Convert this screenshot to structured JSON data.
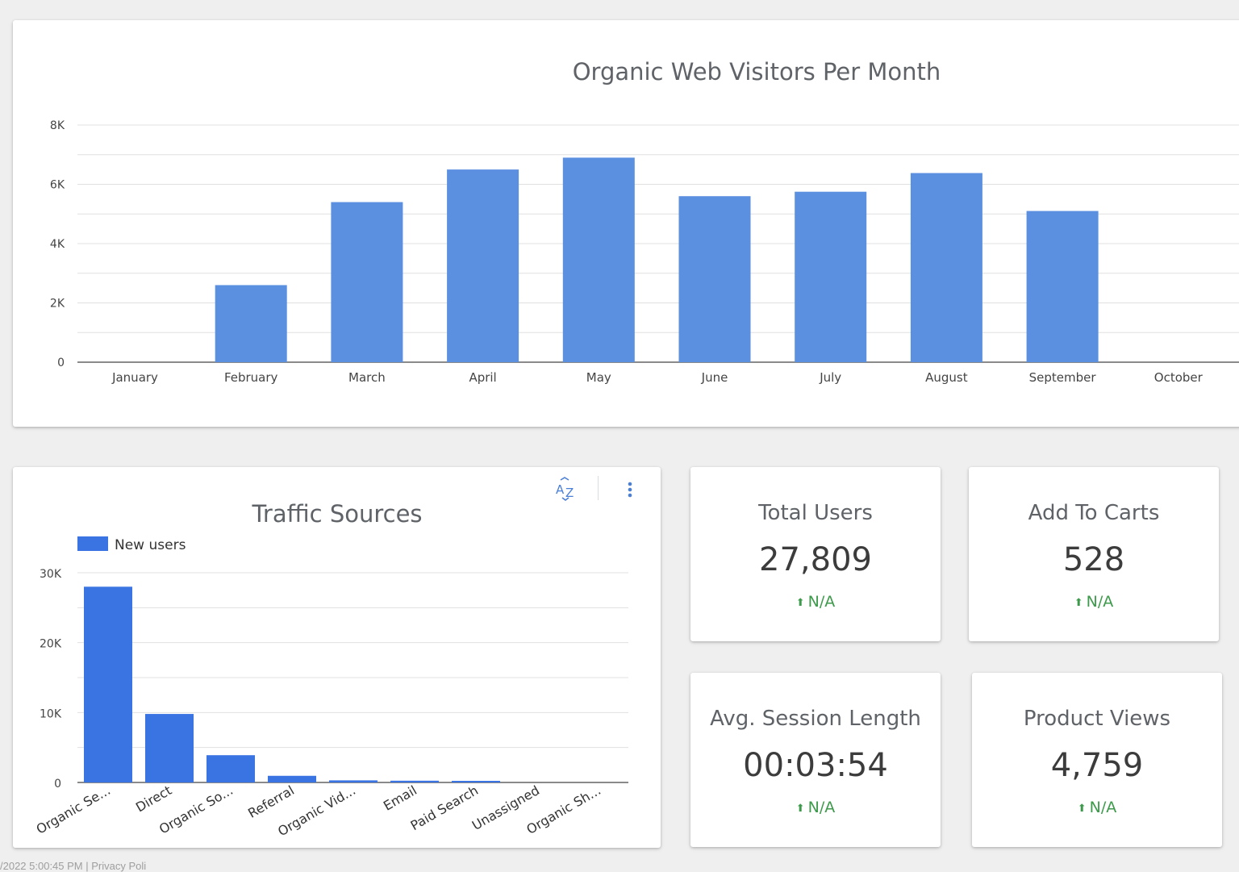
{
  "colors": {
    "bar_monthly": "#5b8fe0",
    "bar_traffic": "#3a73e2",
    "delta_positive": "#3c9a4a",
    "toolbar_icon": "#4a7fd8"
  },
  "chart_data": [
    {
      "type": "bar",
      "title": "Organic Web Visitors Per Month",
      "categories": [
        "January",
        "February",
        "March",
        "April",
        "May",
        "June",
        "July",
        "August",
        "September",
        "October"
      ],
      "values": [
        0,
        2600,
        5400,
        6500,
        6900,
        5600,
        5750,
        6380,
        5100,
        0
      ],
      "ylim": [
        0,
        8000
      ],
      "yticks": [
        "0",
        "2K",
        "4K",
        "6K",
        "8K"
      ],
      "grid": true,
      "legend": "none"
    },
    {
      "type": "bar",
      "title": "Traffic Sources",
      "series": [
        {
          "name": "New users",
          "values": [
            28000,
            9800,
            3900,
            950,
            300,
            250,
            200,
            0,
            0
          ]
        }
      ],
      "categories": [
        "Organic Se...",
        "Direct",
        "Organic So...",
        "Referral",
        "Organic Vid...",
        "Email",
        "Paid Search",
        "Unassigned",
        "Organic Sh..."
      ],
      "ylim": [
        0,
        30000
      ],
      "yticks": [
        "0",
        "10K",
        "20K",
        "30K"
      ],
      "grid": true,
      "legend": "top-left"
    }
  ],
  "toolbar": {
    "sort_icon": "sort-az-icon",
    "more_icon": "more-vert-icon"
  },
  "kpis": {
    "total_users": {
      "title": "Total Users",
      "value": "27,809",
      "delta": "N/A"
    },
    "add_to_carts": {
      "title": "Add To Carts",
      "value": "528",
      "delta": "N/A"
    },
    "avg_session": {
      "title": "Avg. Session Length",
      "value": "00:03:54",
      "delta": "N/A"
    },
    "product_views": {
      "title": "Product Views",
      "value": "4,759",
      "delta": "N/A"
    }
  },
  "footer": {
    "text": "/2022 5:00:45 PM | Privacy Poli"
  }
}
